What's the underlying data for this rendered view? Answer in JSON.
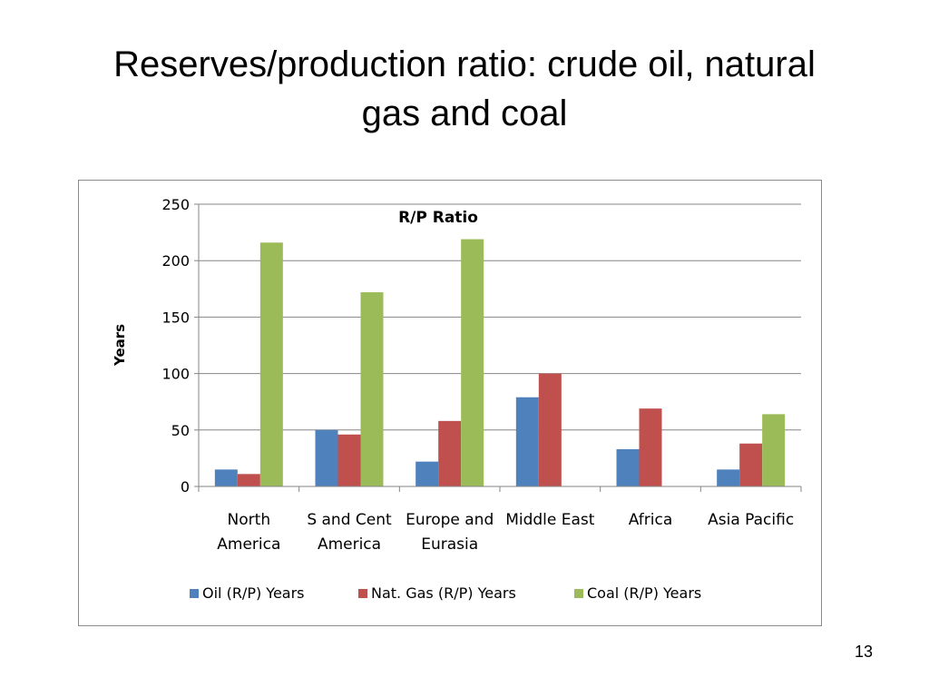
{
  "slide": {
    "title_line1": "Reserves/production ratio: crude oil, natural",
    "title_line2": "gas and coal",
    "page_number": "13"
  },
  "colors": {
    "oil": "#4f81bd",
    "gas": "#c0504d",
    "coal": "#9bbb59",
    "grid": "#868686",
    "frame": "#8c8c8c"
  },
  "chart_data": {
    "type": "bar",
    "title": "R/P Ratio",
    "xlabel": "",
    "ylabel": "Years",
    "ylim": [
      0,
      250
    ],
    "yticks": [
      0,
      50,
      100,
      150,
      200,
      250
    ],
    "grid": true,
    "legend_position": "bottom",
    "categories": [
      [
        "North",
        "America"
      ],
      [
        "S and Cent",
        "America"
      ],
      [
        "Europe and",
        "Eurasia"
      ],
      [
        "Middle East"
      ],
      [
        "Africa"
      ],
      [
        "Asia Pacific"
      ]
    ],
    "series": [
      {
        "name": "Oil (R/P) Years",
        "color_key": "oil",
        "values": [
          15,
          50,
          22,
          79,
          33,
          15
        ]
      },
      {
        "name": "Nat. Gas (R/P) Years",
        "color_key": "gas",
        "values": [
          11,
          46,
          58,
          100,
          69,
          38
        ]
      },
      {
        "name": "Coal (R/P) Years",
        "color_key": "coal",
        "values": [
          216,
          172,
          219,
          0,
          0,
          64
        ]
      }
    ]
  }
}
